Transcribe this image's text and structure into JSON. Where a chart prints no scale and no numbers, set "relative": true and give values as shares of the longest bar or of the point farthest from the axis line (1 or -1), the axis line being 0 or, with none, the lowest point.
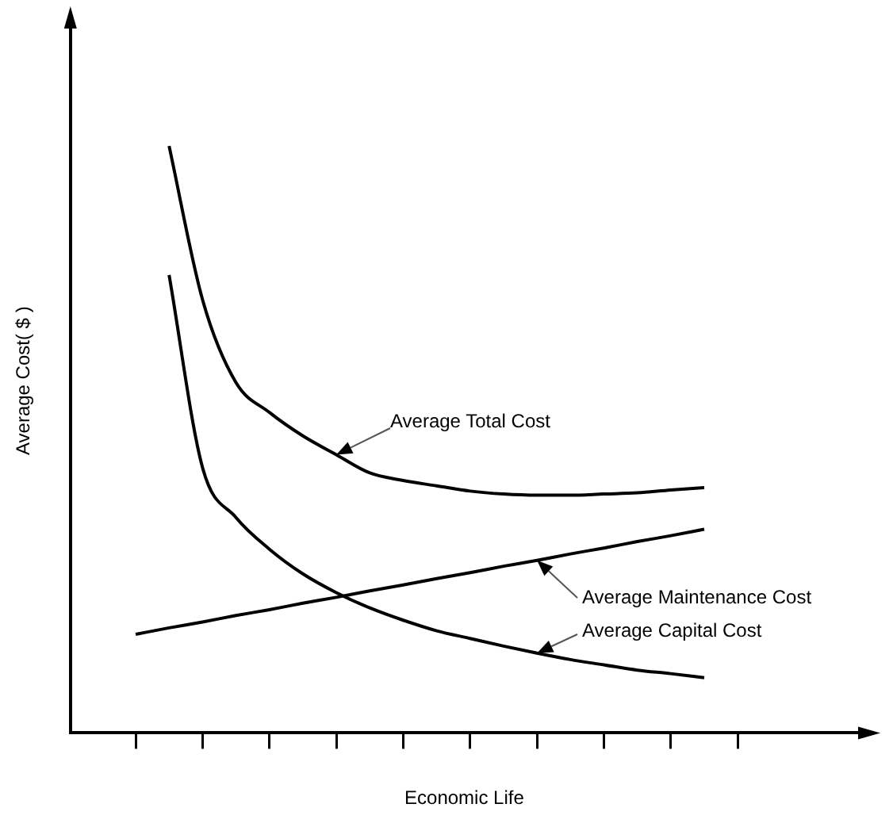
{
  "chart_data": {
    "type": "line",
    "relative": true,
    "xlabel": "Economic Life",
    "ylabel": "Average Cost( $ )",
    "legend": false,
    "grid": false,
    "marker": "none",
    "line_style": "solid",
    "categories": [
      null,
      null,
      null,
      null,
      null,
      null,
      null,
      null,
      null,
      null,
      null,
      null,
      null,
      null,
      null,
      null,
      null,
      null,
      null
    ],
    "series": [
      {
        "name": "Average Total Cost",
        "color": "#000000",
        "values": [
          null,
          1.0,
          0.738,
          0.597,
          0.546,
          0.506,
          0.474,
          0.443,
          0.43,
          0.421,
          0.412,
          0.407,
          0.405,
          0.405,
          0.407,
          0.409,
          0.414,
          0.418,
          null
        ]
      },
      {
        "name": "Average Maintenance Cost",
        "color": "#000000",
        "values": [
          0.168,
          0.179,
          0.189,
          0.2,
          0.21,
          0.221,
          0.231,
          0.242,
          0.252,
          0.263,
          0.273,
          0.284,
          0.294,
          0.305,
          0.315,
          0.326,
          0.336,
          0.347,
          null
        ]
      },
      {
        "name": "Average Capital Cost",
        "color": "#000000",
        "values": [
          null,
          0.78,
          0.452,
          0.367,
          0.313,
          0.271,
          0.239,
          0.213,
          0.192,
          0.174,
          0.161,
          0.148,
          0.136,
          0.125,
          0.116,
          0.107,
          0.101,
          0.094,
          null
        ]
      }
    ]
  }
}
